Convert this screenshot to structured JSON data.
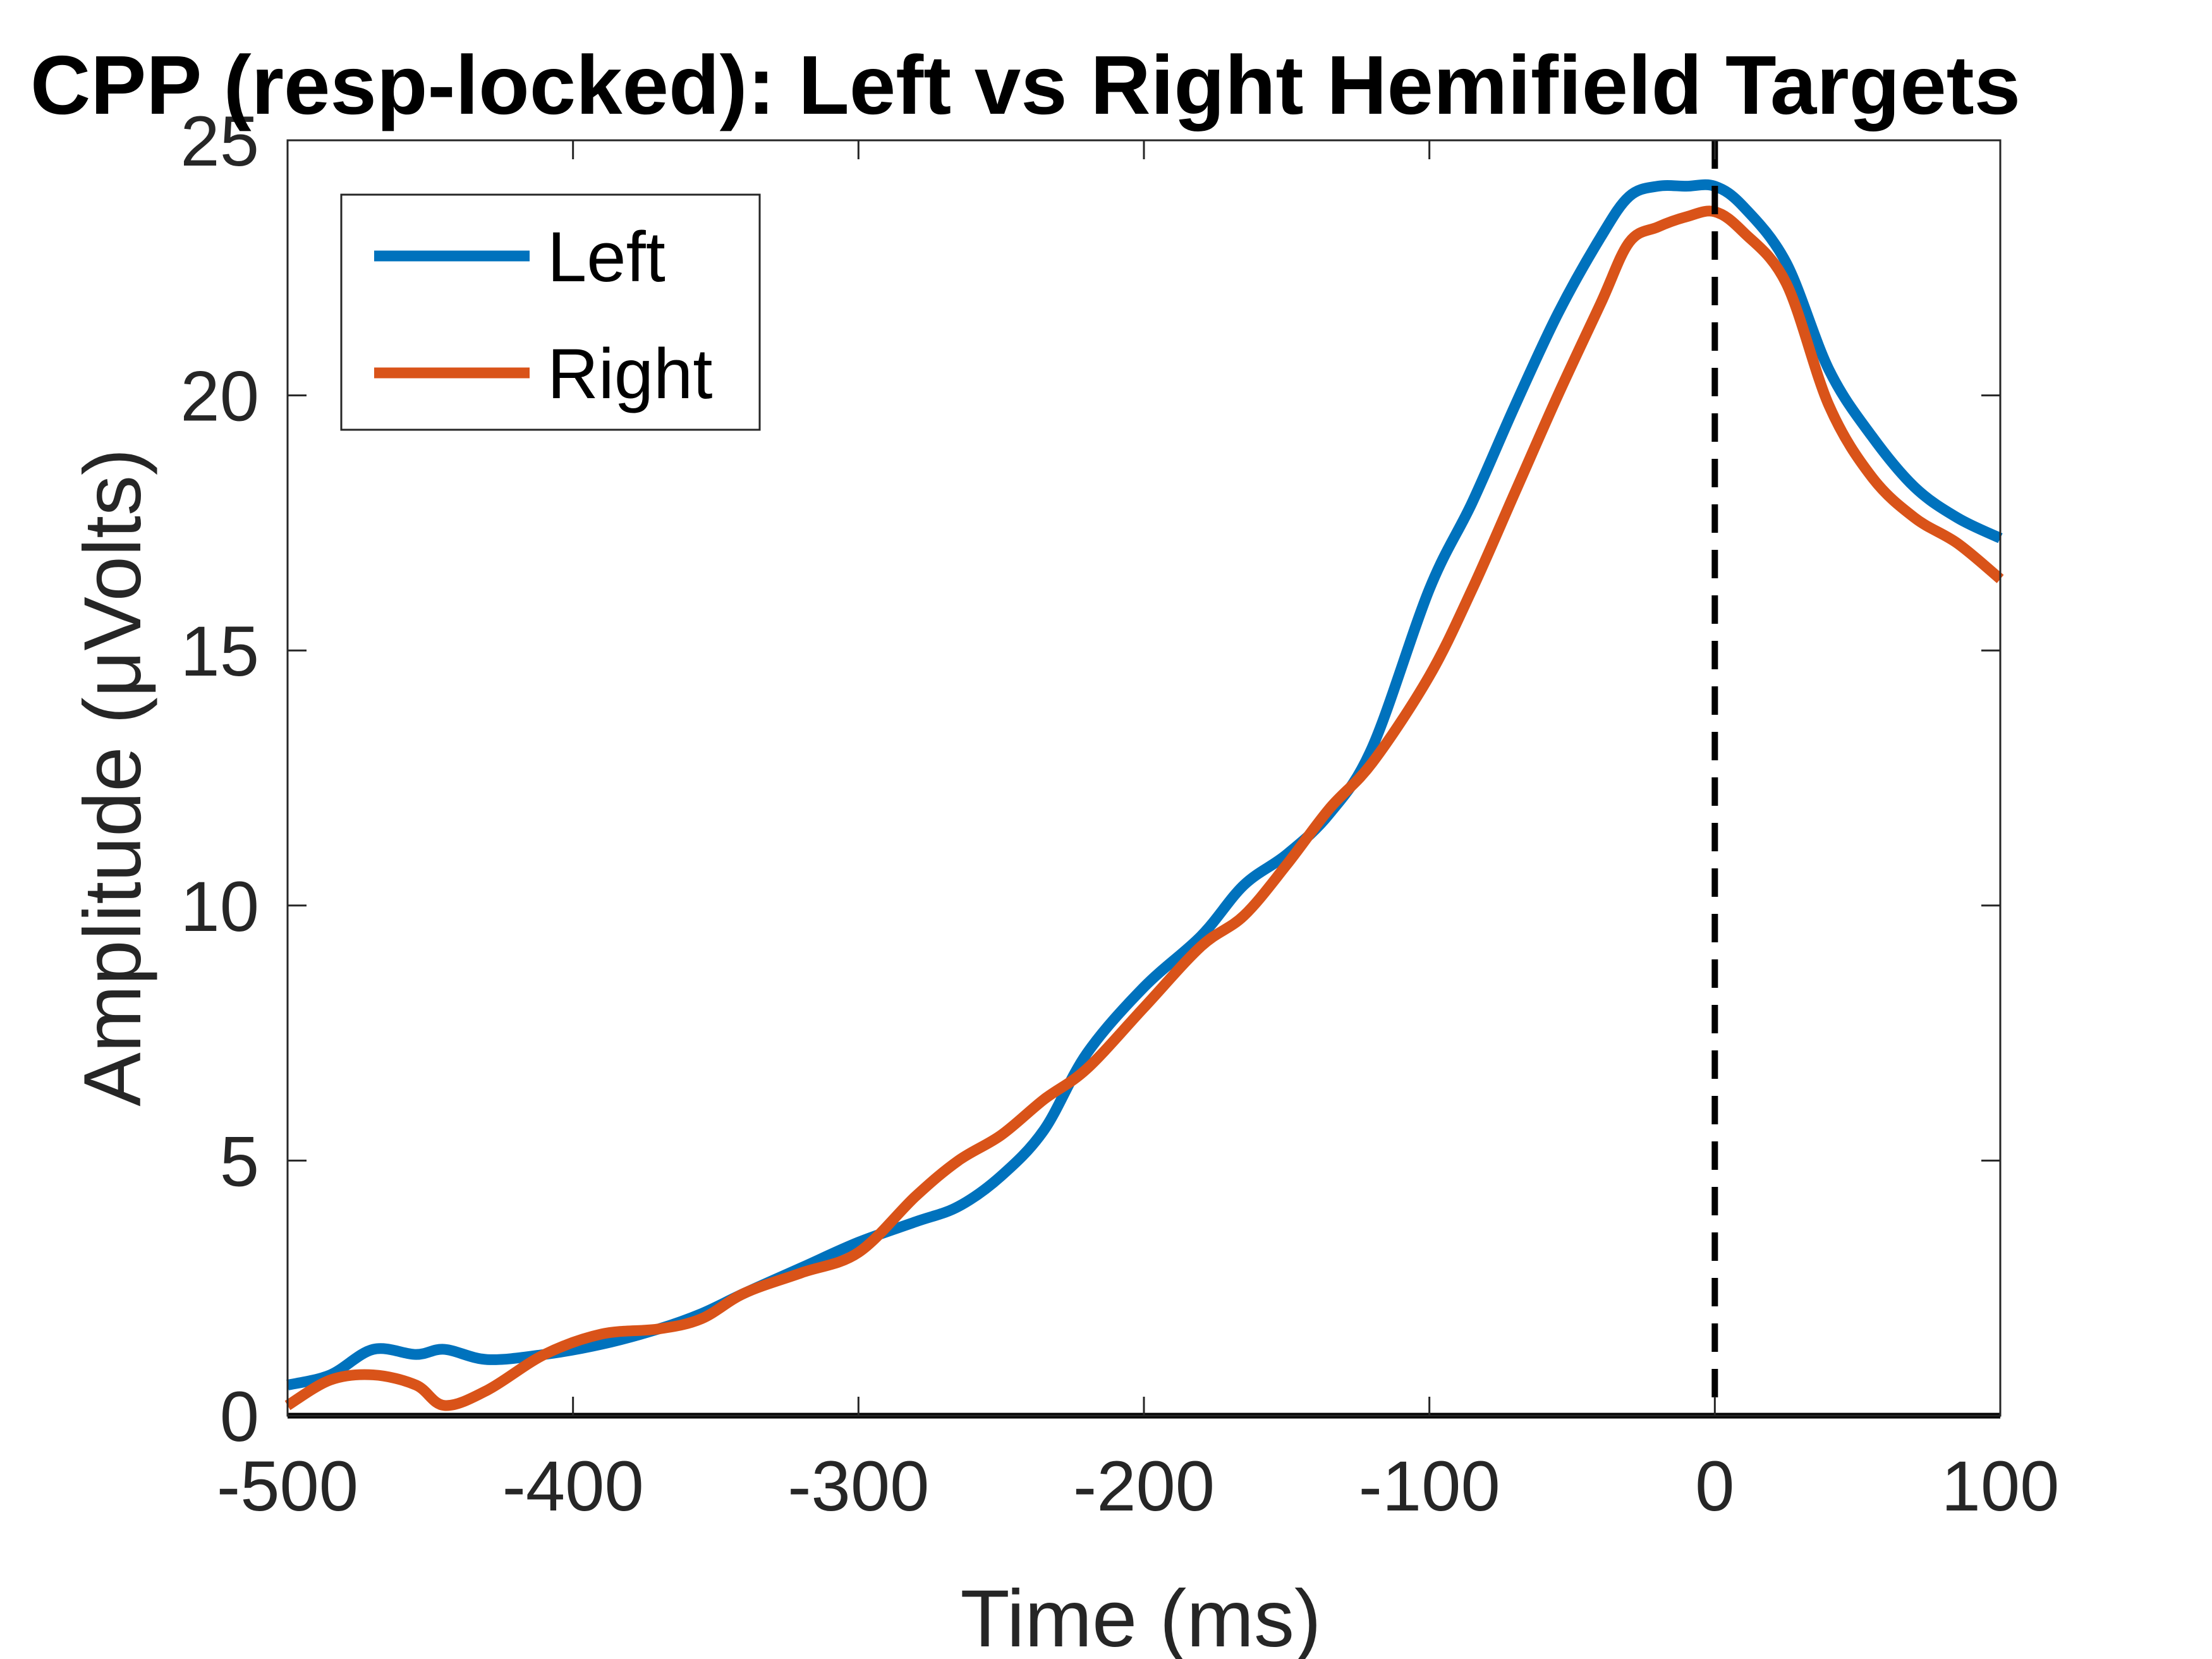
{
  "chart_data": {
    "type": "line",
    "title": "CPP (resp-locked): Left vs Right Hemifield Targets",
    "xlabel": "Time (ms)",
    "ylabel": "Amplitude (μVolts)",
    "xlim": [
      -500,
      100
    ],
    "ylim": [
      0,
      25
    ],
    "xticks": [
      -500,
      -400,
      -300,
      -200,
      -100,
      0,
      100
    ],
    "xtick_labels": [
      "-500",
      "-400",
      "-300",
      "-200",
      "-100",
      "0",
      "100"
    ],
    "yticks": [
      0,
      5,
      10,
      15,
      20,
      25
    ],
    "ytick_labels": [
      "0",
      "5",
      "10",
      "15",
      "20",
      "25"
    ],
    "grid": false,
    "legend_position": "top-left",
    "reference_line": {
      "x": 0,
      "style": "dashed",
      "color": "#000000"
    },
    "series": [
      {
        "name": "Left",
        "color": "#0072BD",
        "x": [
          -500,
          -485,
          -470,
          -455,
          -445,
          -430,
          -410,
          -390,
          -370,
          -355,
          -340,
          -320,
          -300,
          -280,
          -265,
          -250,
          -235,
          -220,
          -200,
          -180,
          -165,
          -150,
          -135,
          -120,
          -100,
          -85,
          -70,
          -55,
          -40,
          -30,
          -20,
          -10,
          0,
          10,
          25,
          40,
          55,
          70,
          85,
          100
        ],
        "y": [
          0.6,
          0.8,
          1.3,
          1.2,
          1.3,
          1.1,
          1.2,
          1.4,
          1.7,
          2.0,
          2.4,
          2.9,
          3.4,
          3.8,
          4.1,
          4.7,
          5.6,
          7.1,
          8.4,
          9.4,
          10.4,
          11.0,
          11.8,
          13.1,
          16.2,
          17.9,
          19.8,
          21.6,
          23.1,
          23.9,
          24.1,
          24.1,
          24.1,
          23.7,
          22.6,
          20.5,
          19.2,
          18.2,
          17.6,
          17.2
        ]
      },
      {
        "name": "Right",
        "color": "#D95319",
        "x": [
          -500,
          -485,
          -470,
          -455,
          -445,
          -430,
          -410,
          -390,
          -370,
          -355,
          -340,
          -320,
          -300,
          -280,
          -265,
          -250,
          -235,
          -220,
          -200,
          -180,
          -165,
          -150,
          -135,
          -120,
          -100,
          -85,
          -70,
          -55,
          -40,
          -30,
          -20,
          -10,
          0,
          10,
          25,
          40,
          55,
          70,
          85,
          100
        ],
        "y": [
          0.2,
          0.7,
          0.8,
          0.6,
          0.2,
          0.5,
          1.2,
          1.6,
          1.7,
          1.9,
          2.4,
          2.8,
          3.2,
          4.3,
          5.0,
          5.5,
          6.2,
          6.8,
          8.0,
          9.2,
          9.8,
          10.8,
          11.9,
          12.8,
          14.5,
          16.2,
          18.1,
          20.0,
          21.8,
          23.0,
          23.3,
          23.5,
          23.6,
          23.2,
          22.2,
          19.8,
          18.4,
          17.6,
          17.1,
          16.4
        ]
      }
    ]
  }
}
